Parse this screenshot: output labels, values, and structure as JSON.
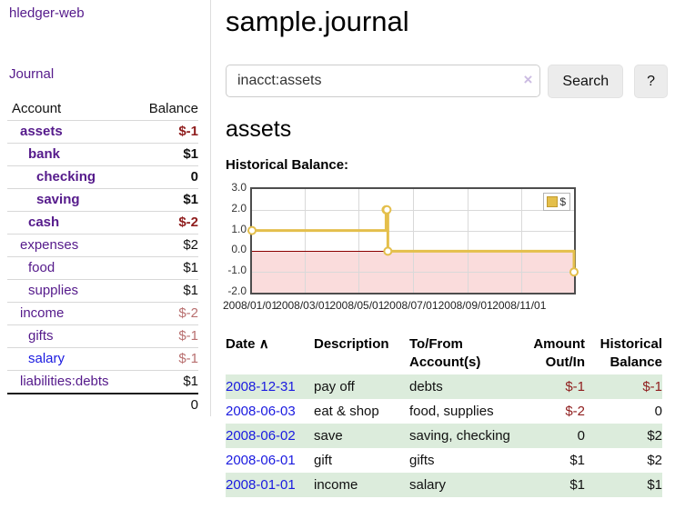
{
  "colors": {
    "purple": "#551a8b",
    "link_blue": "#1a1ae0",
    "neg_dark": "#8f1d1d",
    "neg_soft": "#b86f6f",
    "row_green": "#dcecdc",
    "btn_gray": "#ececec",
    "gold": "#e4bf4b",
    "pink": "#fadcdc",
    "zero_red": "#8b0000",
    "chart_border": "#4d4d4d",
    "grid": "#d9d9d9"
  },
  "sidebar": {
    "brand": "hledger-web",
    "journal_link": "Journal",
    "accounts": {
      "headers": {
        "account": "Account",
        "balance": "Balance"
      },
      "rows": [
        {
          "name": "assets",
          "balance": "$-1",
          "indent": 1,
          "bold": true,
          "neg": "dark",
          "link": "purple"
        },
        {
          "name": "bank",
          "balance": "$1",
          "indent": 2,
          "bold": true,
          "neg": null,
          "link": "purple"
        },
        {
          "name": "checking",
          "balance": "0",
          "indent": 3,
          "bold": true,
          "neg": null,
          "link": "purple"
        },
        {
          "name": "saving",
          "balance": "$1",
          "indent": 3,
          "bold": true,
          "neg": null,
          "link": "purple"
        },
        {
          "name": "cash",
          "balance": "$-2",
          "indent": 2,
          "bold": true,
          "neg": "dark",
          "link": "purple"
        },
        {
          "name": "expenses",
          "balance": "$2",
          "indent": 1,
          "bold": false,
          "neg": null,
          "link": "purple"
        },
        {
          "name": "food",
          "balance": "$1",
          "indent": 2,
          "bold": false,
          "neg": null,
          "link": "purple"
        },
        {
          "name": "supplies",
          "balance": "$1",
          "indent": 2,
          "bold": false,
          "neg": null,
          "link": "purple"
        },
        {
          "name": "income",
          "balance": "$-2",
          "indent": 1,
          "bold": false,
          "neg": "soft",
          "link": "purple"
        },
        {
          "name": "gifts",
          "balance": "$-1",
          "indent": 2,
          "bold": false,
          "neg": "soft",
          "link": "purple"
        },
        {
          "name": "salary",
          "balance": "$-1",
          "indent": 2,
          "bold": false,
          "neg": "soft",
          "link": "blue"
        },
        {
          "name": "liabilities:debts",
          "balance": "$1",
          "indent": 1,
          "bold": false,
          "neg": null,
          "link": "purple"
        }
      ],
      "total": "0"
    }
  },
  "main": {
    "title": "sample.journal",
    "search": {
      "value": "inacct:assets",
      "clear_icon": "×",
      "search_button": "Search",
      "help_button": "?"
    },
    "account_heading": "assets",
    "chart_title": "Historical Balance:"
  },
  "chart_data": {
    "type": "line",
    "step": true,
    "title": "Historical Balance:",
    "legend": "$",
    "legend_position": "top-right",
    "xrange": [
      "2008-01-01",
      "2008-12-31"
    ],
    "ylim": [
      -2,
      3
    ],
    "yticks": [
      "3.0",
      "2.0",
      "1.0",
      "0.0",
      "-1.0",
      "-2.0"
    ],
    "ytick_values": [
      3,
      2,
      1,
      0,
      -1,
      -2
    ],
    "xtick_labels": [
      "2008/01/01",
      "2008/03/01",
      "2008/05/01",
      "2008/07/01",
      "2008/09/01",
      "2008/11/01"
    ],
    "xtick_dates": [
      "2008-01-01",
      "2008-03-01",
      "2008-05-01",
      "2008-07-01",
      "2008-09-01",
      "2008-11-01"
    ],
    "series": [
      {
        "name": "$",
        "points": [
          {
            "x": "2008-01-01",
            "y": 1
          },
          {
            "x": "2008-06-01",
            "y": 2
          },
          {
            "x": "2008-06-02",
            "y": 2
          },
          {
            "x": "2008-06-03",
            "y": 0
          },
          {
            "x": "2008-12-31",
            "y": -1
          }
        ]
      }
    ],
    "grid": true,
    "negative_region_shaded": true
  },
  "register": {
    "sort_icon": "∧",
    "headers": {
      "date": "Date",
      "description": "Description",
      "accounts": "To/From Account(s)",
      "amount": "Amount Out/In",
      "balance": "Historical Balance"
    },
    "rows": [
      {
        "date": "2008-12-31",
        "description": "pay off",
        "accounts": "debts",
        "amount": "$-1",
        "amount_neg": true,
        "balance": "$-1",
        "balance_neg": true
      },
      {
        "date": "2008-06-03",
        "description": "eat & shop",
        "accounts": "food, supplies",
        "amount": "$-2",
        "amount_neg": true,
        "balance": "0",
        "balance_neg": false
      },
      {
        "date": "2008-06-02",
        "description": "save",
        "accounts": "saving, checking",
        "amount": "0",
        "amount_neg": false,
        "balance": "$2",
        "balance_neg": false
      },
      {
        "date": "2008-06-01",
        "description": "gift",
        "accounts": "gifts",
        "amount": "$1",
        "amount_neg": false,
        "balance": "$2",
        "balance_neg": false
      },
      {
        "date": "2008-01-01",
        "description": "income",
        "accounts": "salary",
        "amount": "$1",
        "amount_neg": false,
        "balance": "$1",
        "balance_neg": false
      }
    ]
  }
}
